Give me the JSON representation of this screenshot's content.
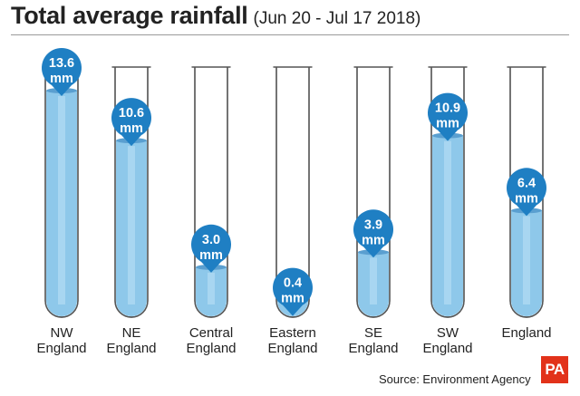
{
  "header": {
    "title": "Total average rainfall",
    "subtitle": "(Jun 20 - Jul 17 2018)"
  },
  "footer": {
    "source": "Source: Environment Agency",
    "logo": "PA"
  },
  "colors": {
    "water": "#8ec8ea",
    "water_highlight": "#b3dcf4",
    "surface": "#5a9fd0",
    "bubble": "#1f7fc3",
    "tube_outline": "#555555",
    "logo": "#e2321a"
  },
  "chart_data": {
    "type": "bar",
    "style": "test-tubes",
    "title": "Total average rainfall",
    "subtitle": "(Jun 20 - Jul 17 2018)",
    "unit": "mm",
    "categories": [
      [
        "NW",
        "England"
      ],
      [
        "NE",
        "England"
      ],
      [
        "Central",
        "England"
      ],
      [
        "Eastern",
        "England"
      ],
      [
        "SE",
        "England"
      ],
      [
        "SW",
        "England"
      ],
      [
        "England"
      ]
    ],
    "values": [
      13.6,
      10.6,
      3.0,
      0.4,
      3.9,
      10.9,
      6.4
    ],
    "value_labels": [
      "13.6",
      "10.6",
      "3.0",
      "0.4",
      "3.9",
      "10.9",
      "6.4"
    ],
    "ylim": [
      0,
      13.6
    ],
    "grid": false,
    "legend": "none"
  }
}
